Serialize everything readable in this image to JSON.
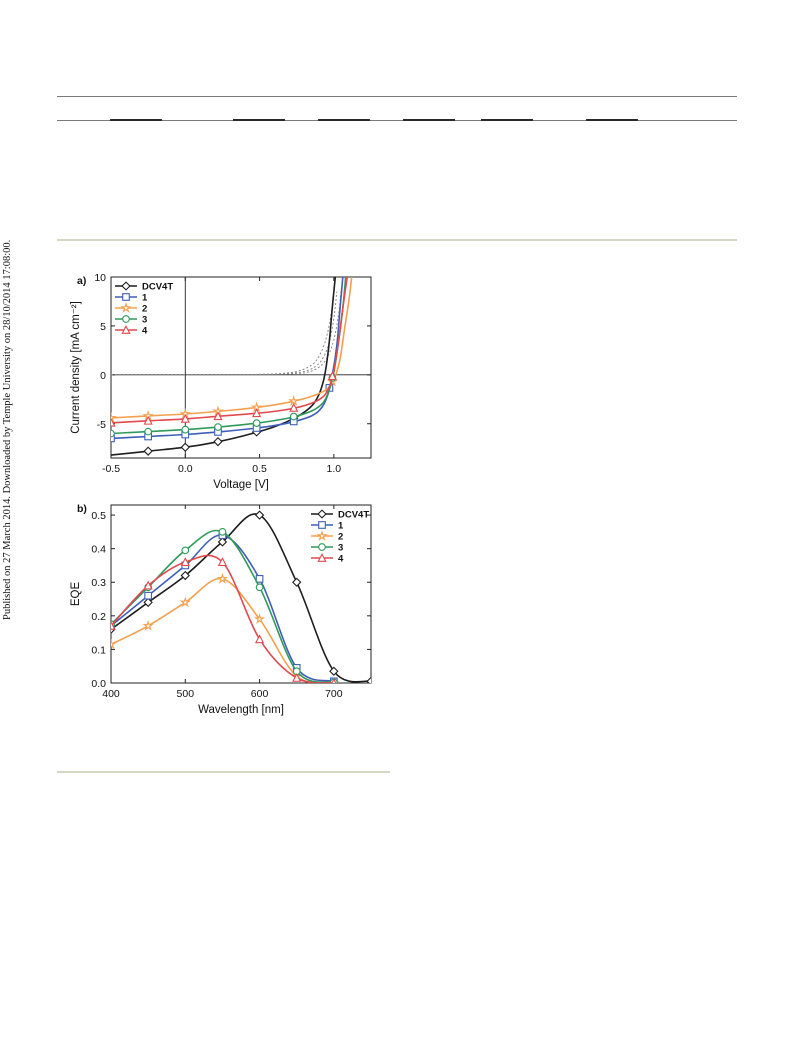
{
  "side_note": "Published on 27 March 2014. Downloaded by Temple University on 28/10/2014 17:08:00.",
  "colors": {
    "DCV4T": "#1e1e1e",
    "1": "#3e5fb8",
    "2": "#f5a04e",
    "3": "#2f9a5a",
    "4": "#e2494f",
    "dark_dashed": "#8a8a8a"
  },
  "chart_data": [
    {
      "type": "line",
      "panel_label": "a)",
      "xlabel": "Voltage [V]",
      "ylabel": "Current density [mA cm⁻²]",
      "xlim": [
        -0.5,
        1.25
      ],
      "ylim": [
        -8.5,
        10
      ],
      "x_ticks": [
        -0.5,
        0.0,
        0.5,
        1.0
      ],
      "x_tick_labels": [
        "-0.5",
        "0.0",
        "0.5",
        "1.0"
      ],
      "y_ticks": [
        -5,
        0,
        5,
        10
      ],
      "y_tick_labels": [
        "-5",
        "0",
        "5",
        "10"
      ],
      "grid": false,
      "legend_position": "top-left",
      "zero_lines": true,
      "series": [
        {
          "name": "DCV4T",
          "marker": "diamond",
          "x": [
            -0.5,
            -0.25,
            0.0,
            0.2,
            0.4,
            0.6,
            0.75,
            0.85,
            0.9,
            0.93,
            0.95,
            0.97,
            0.99,
            1.01
          ],
          "y": [
            -8.2,
            -7.8,
            -7.4,
            -6.9,
            -6.2,
            -5.3,
            -4.3,
            -3.2,
            -2.0,
            -0.6,
            1.0,
            3.5,
            7.0,
            10.0
          ],
          "marker_x": [
            -0.25,
            0.0,
            0.22,
            0.48,
            0.73
          ]
        },
        {
          "name": "1",
          "marker": "square",
          "x": [
            -0.5,
            -0.25,
            0.0,
            0.25,
            0.5,
            0.7,
            0.85,
            0.92,
            0.96,
            0.99,
            1.02,
            1.04,
            1.06
          ],
          "y": [
            -6.5,
            -6.3,
            -6.1,
            -5.8,
            -5.4,
            -4.9,
            -4.2,
            -3.3,
            -2.0,
            0.0,
            3.0,
            6.5,
            10.0
          ],
          "marker_x": [
            -0.5,
            -0.25,
            0.0,
            0.22,
            0.48,
            0.73,
            0.97
          ]
        },
        {
          "name": "2",
          "marker": "star",
          "x": [
            -0.5,
            -0.25,
            0.0,
            0.25,
            0.5,
            0.7,
            0.85,
            0.95,
            1.0,
            1.04,
            1.07,
            1.1,
            1.12
          ],
          "y": [
            -4.4,
            -4.2,
            -4.0,
            -3.7,
            -3.3,
            -2.8,
            -2.2,
            -1.5,
            -0.5,
            1.5,
            4.5,
            7.5,
            10.0
          ],
          "marker_x": [
            -0.5,
            -0.25,
            0.0,
            0.22,
            0.48,
            0.73,
            0.99
          ]
        },
        {
          "name": "3",
          "marker": "circle",
          "x": [
            -0.5,
            -0.25,
            0.0,
            0.25,
            0.5,
            0.7,
            0.85,
            0.93,
            0.97,
            1.0,
            1.03,
            1.06,
            1.08
          ],
          "y": [
            -6.0,
            -5.8,
            -5.6,
            -5.3,
            -4.9,
            -4.4,
            -3.7,
            -2.8,
            -1.5,
            0.3,
            3.2,
            6.8,
            10.0
          ],
          "marker_x": [
            -0.5,
            -0.25,
            0.0,
            0.22,
            0.48,
            0.73,
            0.99
          ]
        },
        {
          "name": "4",
          "marker": "triangle",
          "x": [
            -0.5,
            -0.25,
            0.0,
            0.25,
            0.5,
            0.7,
            0.85,
            0.93,
            0.97,
            1.0,
            1.03,
            1.06,
            1.09
          ],
          "y": [
            -4.9,
            -4.7,
            -4.5,
            -4.2,
            -3.9,
            -3.5,
            -2.9,
            -2.2,
            -1.2,
            0.4,
            3.2,
            6.8,
            10.0
          ],
          "marker_x": [
            -0.5,
            -0.25,
            0.0,
            0.22,
            0.48,
            0.73,
            0.99
          ]
        }
      ],
      "dark_curves": [
        {
          "x": [
            -0.5,
            0.3,
            0.6,
            0.75,
            0.85,
            0.9,
            0.94,
            0.97,
            1.0
          ],
          "y": [
            0.0,
            0.02,
            0.1,
            0.35,
            1.0,
            1.9,
            3.3,
            5.2,
            8.0
          ]
        },
        {
          "x": [
            -0.5,
            0.3,
            0.65,
            0.8,
            0.88,
            0.93,
            0.97,
            1.0,
            1.02
          ],
          "y": [
            0.0,
            0.02,
            0.1,
            0.35,
            0.9,
            1.8,
            3.4,
            5.8,
            8.5
          ]
        },
        {
          "x": [
            -0.5,
            0.4,
            0.7,
            0.83,
            0.91,
            0.96,
            1.0,
            1.03,
            1.05
          ],
          "y": [
            0.0,
            0.02,
            0.1,
            0.3,
            0.9,
            1.9,
            3.6,
            6.0,
            8.8
          ]
        }
      ]
    },
    {
      "type": "line",
      "panel_label": "b)",
      "xlabel": "Wavelength [nm]",
      "ylabel": "EQE",
      "xlim": [
        400,
        750
      ],
      "ylim": [
        0.0,
        0.53
      ],
      "x_ticks": [
        400,
        500,
        600,
        700
      ],
      "x_tick_labels": [
        "400",
        "500",
        "600",
        "700"
      ],
      "y_ticks": [
        0.0,
        0.1,
        0.2,
        0.3,
        0.4,
        0.5
      ],
      "y_tick_labels": [
        "0.0",
        "0.1",
        "0.2",
        "0.3",
        "0.4",
        "0.5"
      ],
      "grid": false,
      "legend_position": "top-right",
      "series": [
        {
          "name": "DCV4T",
          "marker": "diamond",
          "x": [
            400,
            450,
            500,
            550,
            600,
            650,
            700,
            750
          ],
          "y": [
            0.16,
            0.24,
            0.32,
            0.42,
            0.5,
            0.3,
            0.035,
            0.005
          ]
        },
        {
          "name": "1",
          "marker": "square",
          "x": [
            400,
            450,
            500,
            550,
            600,
            650,
            700
          ],
          "y": [
            0.17,
            0.26,
            0.35,
            0.44,
            0.31,
            0.045,
            0.005
          ]
        },
        {
          "name": "2",
          "marker": "star",
          "x": [
            400,
            450,
            500,
            550,
            600,
            650,
            700
          ],
          "y": [
            0.115,
            0.17,
            0.24,
            0.31,
            0.19,
            0.02,
            0.0
          ]
        },
        {
          "name": "3",
          "marker": "circle",
          "x": [
            400,
            450,
            500,
            550,
            600,
            650,
            700
          ],
          "y": [
            0.175,
            0.285,
            0.395,
            0.45,
            0.285,
            0.035,
            0.002
          ]
        },
        {
          "name": "4",
          "marker": "triangle",
          "x": [
            400,
            450,
            500,
            550,
            600,
            650,
            700
          ],
          "y": [
            0.17,
            0.29,
            0.36,
            0.36,
            0.13,
            0.015,
            0.0
          ]
        }
      ]
    }
  ]
}
